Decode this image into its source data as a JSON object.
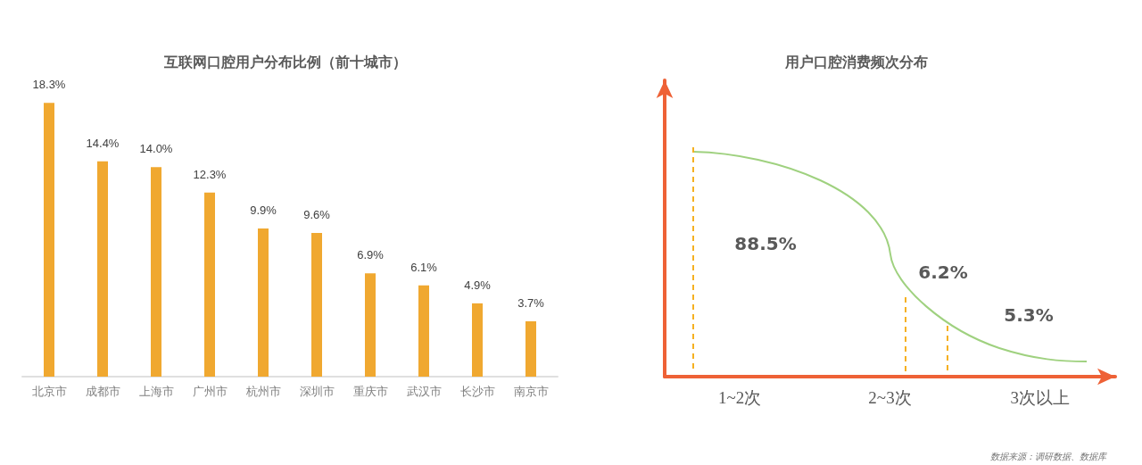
{
  "chart_data": [
    {
      "type": "bar",
      "title": "互联网口腔用户分布比例（前十城市）",
      "categories": [
        "北京市",
        "成都市",
        "上海市",
        "广州市",
        "杭州市",
        "深圳市",
        "重庆市",
        "武汉市",
        "长沙市",
        "南京市"
      ],
      "values": [
        18.3,
        14.4,
        14.0,
        12.3,
        9.9,
        9.6,
        6.9,
        6.1,
        4.9,
        3.7
      ],
      "value_labels": [
        "18.3%",
        "14.4%",
        "14.0%",
        "12.3%",
        "9.9%",
        "9.6%",
        "6.9%",
        "6.1%",
        "4.9%",
        "3.7%"
      ],
      "color": "#f0a830",
      "tick_labels": "x"
    },
    {
      "type": "other",
      "title": "用户口腔消费频次分布",
      "categories": [
        "1~2次",
        "2~3次",
        "3次以上"
      ],
      "values": [
        88.5,
        6.2,
        5.3
      ],
      "value_labels": [
        "88.5%",
        "6.2%",
        "5.3%"
      ],
      "color": "#ee6136",
      "annotations": [
        "数据来源：调研数据、数据库"
      ]
    }
  ]
}
